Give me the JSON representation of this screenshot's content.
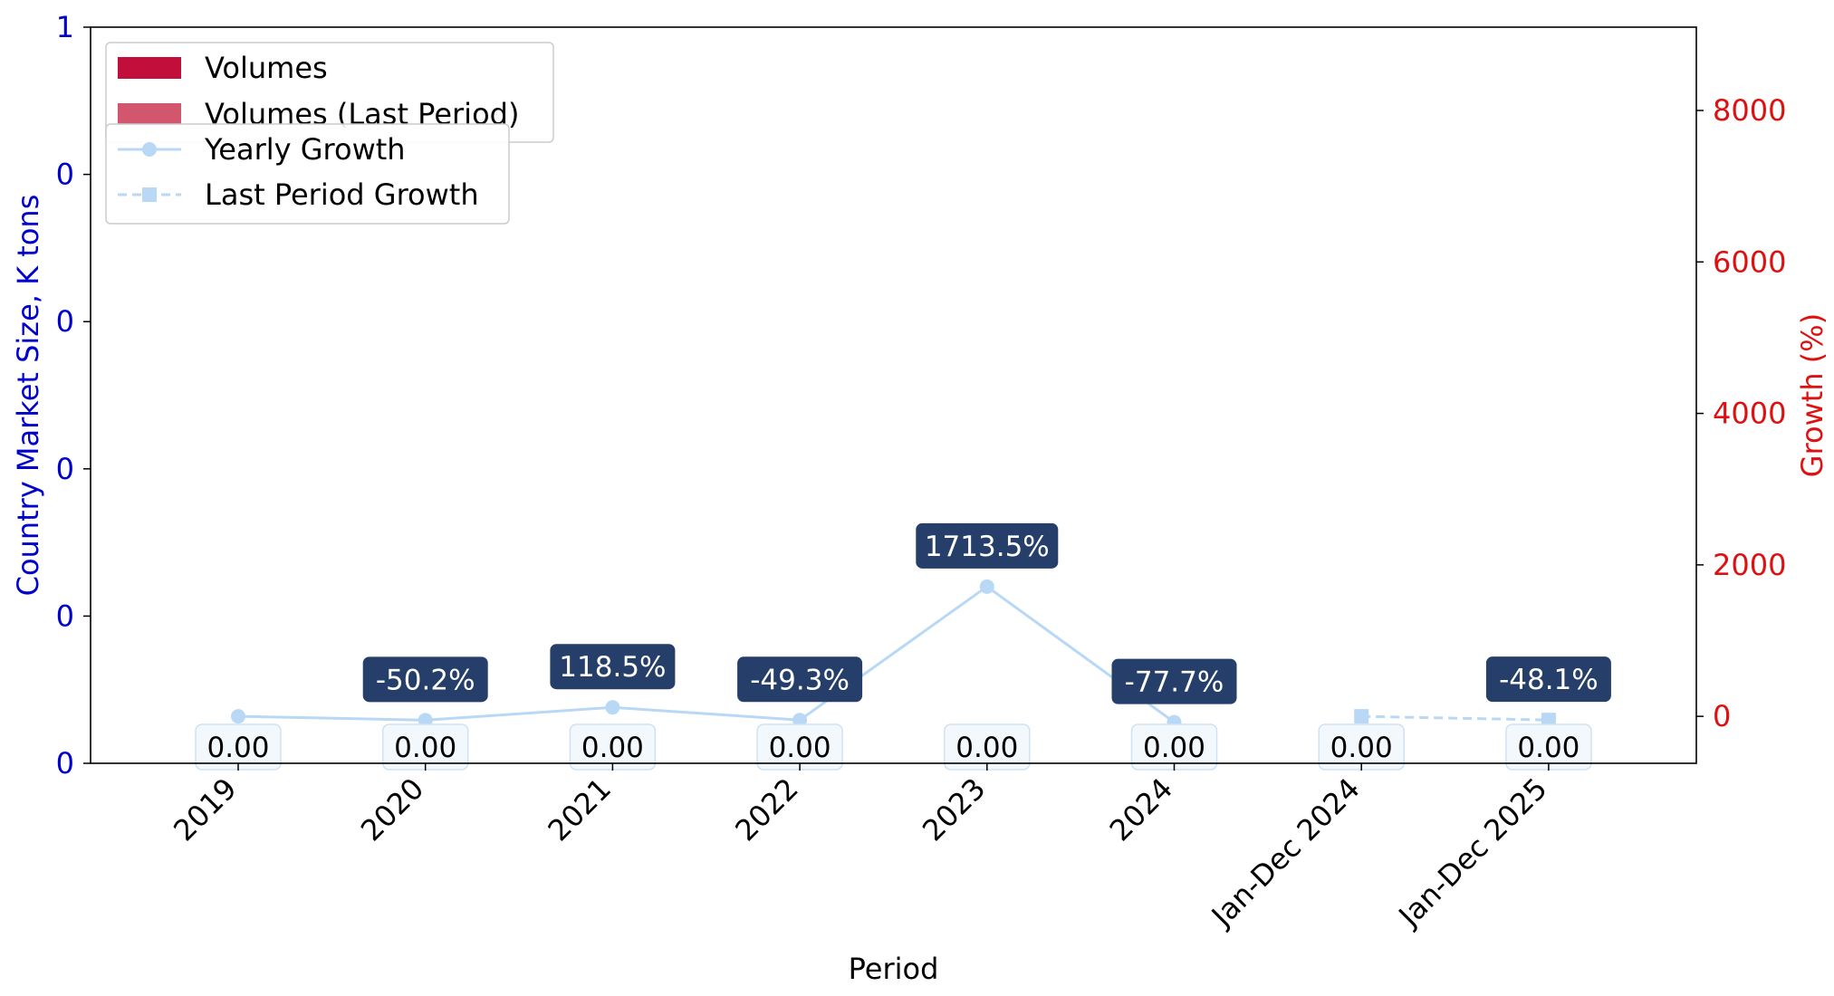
{
  "chart_data": {
    "type": "bar",
    "categories": [
      "2019",
      "2020",
      "2021",
      "2022",
      "2023",
      "2024",
      "Jan-Dec 2024",
      "Jan-Dec 2025"
    ],
    "xlabel": "Period",
    "ylabel": "Country Market Size, K tons",
    "ylabel_right": "Growth (%)",
    "y_left_ticks": [
      "0",
      "0",
      "0",
      "0",
      "0",
      "1"
    ],
    "y_right_ticks": [
      0,
      2000,
      4000,
      6000,
      8000
    ],
    "y_right_lim": [
      -620,
      9100
    ],
    "series": [
      {
        "name": "Volumes",
        "kind": "bar",
        "color": "#c20e3a",
        "values": [
          0,
          0,
          0,
          0,
          0,
          0,
          null,
          null
        ]
      },
      {
        "name": "Volumes (Last Period)",
        "kind": "bar",
        "color": "#d2566d",
        "values": [
          null,
          null,
          null,
          null,
          null,
          null,
          0,
          0
        ]
      },
      {
        "name": "Yearly Growth",
        "kind": "line",
        "color": "#b8d8f6",
        "marker": "circle",
        "values": [
          0,
          -50.2,
          118.5,
          -49.3,
          1713.5,
          -77.7,
          null,
          null
        ]
      },
      {
        "name": "Last Period Growth",
        "kind": "line",
        "color": "#b8d8f6",
        "marker": "square",
        "dash": true,
        "values": [
          null,
          null,
          null,
          null,
          null,
          null,
          0,
          -48.1
        ]
      }
    ],
    "bar_labels": [
      "0.00",
      "0.00",
      "0.00",
      "0.00",
      "0.00",
      "0.00",
      "0.00",
      "0.00"
    ],
    "growth_labels": [
      null,
      "-50.2%",
      "118.5%",
      "-49.3%",
      "1713.5%",
      "-77.7%",
      null,
      "-48.1%"
    ],
    "colors": {
      "left_axis": "#0000cc",
      "right_axis": "#dd1111",
      "growth_label_bg": "#253f6a",
      "bar_label_bg": "#f3f8fd",
      "bar_label_border": "#cfe2f3"
    },
    "legend_position": "upper-left",
    "grid": false
  }
}
